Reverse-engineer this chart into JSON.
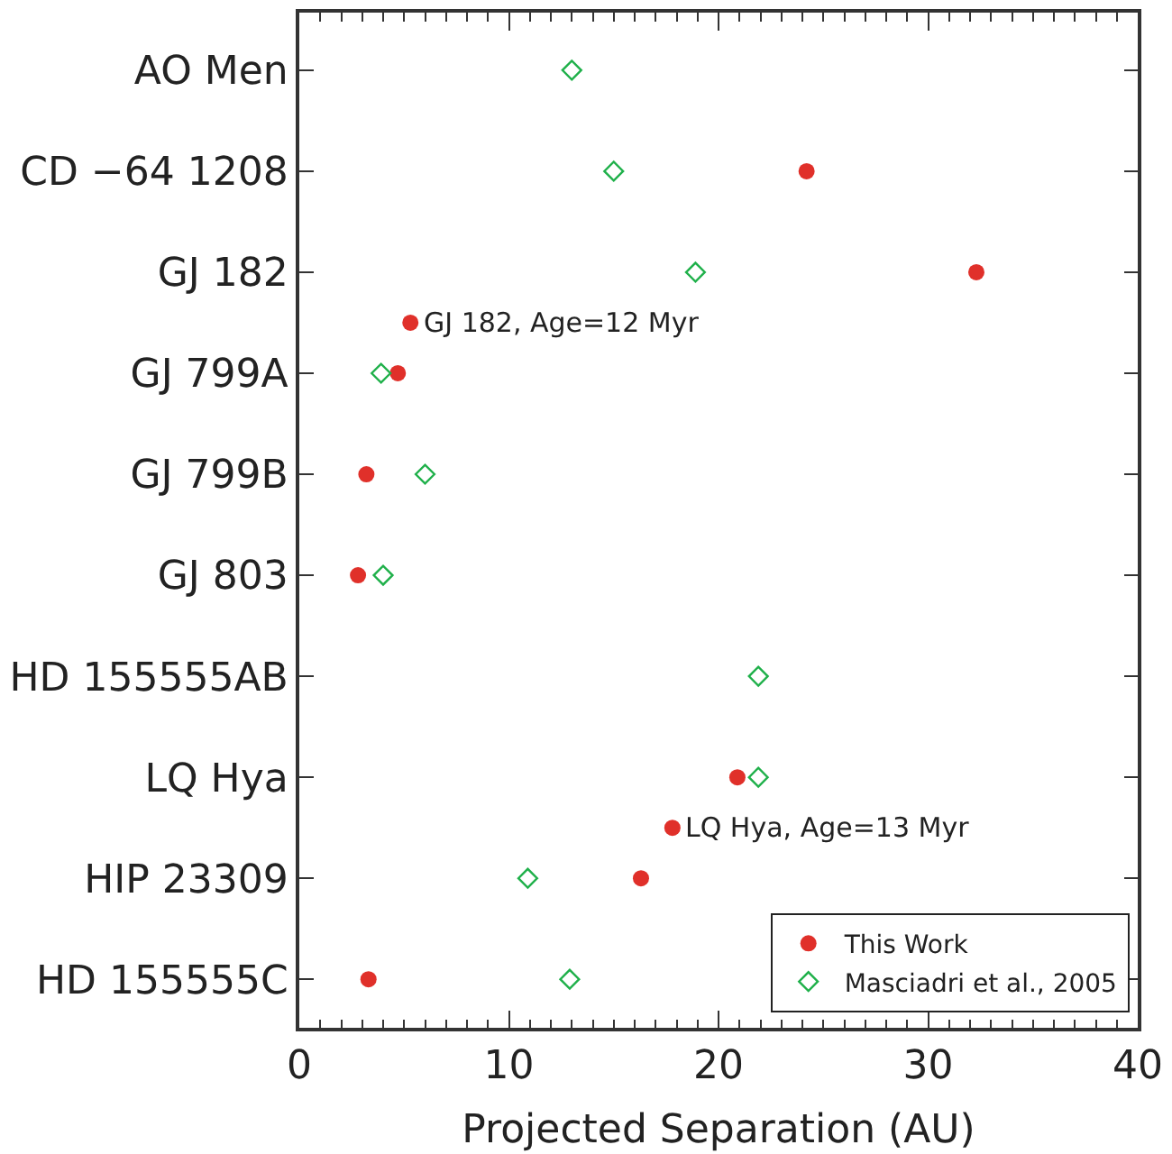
{
  "chart_data": {
    "type": "scatter",
    "orientation": "horizontal",
    "xlabel": "Projected Separation (AU)",
    "xlim": [
      0,
      40
    ],
    "xticks": [
      0,
      10,
      20,
      30,
      40
    ],
    "categories": [
      "AO Men",
      null,
      "CD −64 1208",
      null,
      "GJ 182",
      null,
      "GJ 799A",
      null,
      "GJ 799B",
      null,
      "GJ 803",
      null,
      "HD 155555AB",
      null,
      "LQ Hya",
      null,
      "HIP 23309",
      null,
      "HD 155555C"
    ],
    "series": [
      {
        "name": "This Work",
        "color": "#e0302a",
        "marker": "circle",
        "values": [
          null,
          null,
          24.2,
          null,
          32.3,
          null,
          4.7,
          null,
          3.2,
          null,
          2.8,
          null,
          null,
          null,
          20.9,
          null,
          16.3,
          null,
          3.3
        ]
      },
      {
        "name": "Masciadri et al., 2005",
        "color": "#1fb04a",
        "marker": "diamond-open",
        "values": [
          13.0,
          null,
          15.0,
          null,
          18.9,
          null,
          3.9,
          null,
          6.0,
          null,
          4.0,
          null,
          21.9,
          null,
          21.9,
          null,
          10.9,
          null,
          12.9
        ]
      },
      {
        "name": "GJ 182, Age=12 Myr",
        "color": "#e0302a",
        "marker": "circle",
        "values": [
          null,
          null,
          null,
          null,
          null,
          5.3,
          null,
          null,
          null,
          null,
          null,
          null,
          null,
          null,
          null,
          null,
          null,
          null,
          null
        ]
      },
      {
        "name": "LQ Hya, Age=13 Myr",
        "color": "#e0302a",
        "marker": "circle",
        "values": [
          null,
          null,
          null,
          null,
          null,
          null,
          null,
          null,
          null,
          null,
          null,
          null,
          null,
          null,
          null,
          17.8,
          null,
          null,
          null
        ]
      }
    ],
    "legend": "bottom right"
  }
}
